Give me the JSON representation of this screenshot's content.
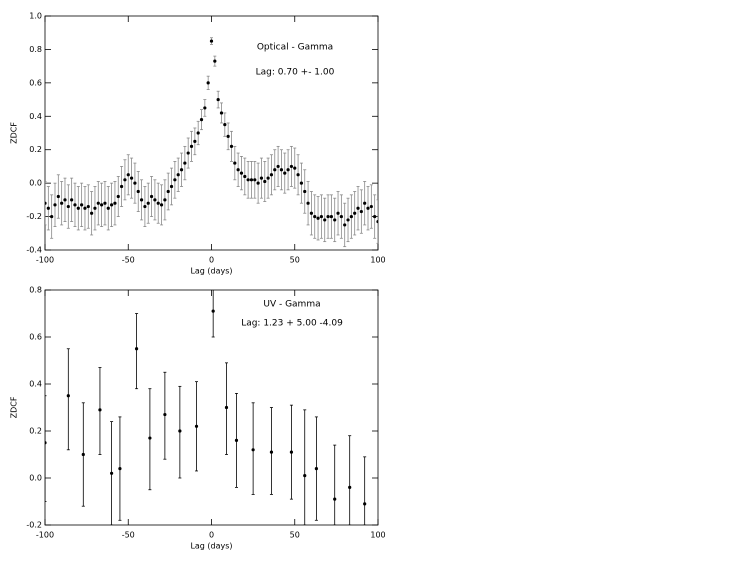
{
  "chart_data": [
    {
      "type": "scatter",
      "x_label": "Lag (days)",
      "y_label": "ZDCF",
      "annotations": [
        "Optical - Gamma",
        "Lag: 0.70 +- 1.00"
      ],
      "color": "#000000",
      "error_color": "#888888",
      "xlim": [
        -100,
        100
      ],
      "xticks": [
        -100,
        -50,
        0,
        50,
        100
      ],
      "ylim": [
        -0.4,
        1.0
      ],
      "yticks": [
        -0.4,
        -0.2,
        {
          "value": 0,
          "label": "0.0"
        },
        0.2,
        0.4,
        0.6,
        0.8,
        {
          "value": 1,
          "label": "1.0"
        }
      ],
      "x": [
        -100,
        -98,
        -96,
        -94,
        -92,
        -90,
        -88,
        -86,
        -84,
        -82,
        -80,
        -78,
        -76,
        -74,
        -72,
        -70,
        -68,
        -66,
        -64,
        -62,
        -60,
        -58,
        -56,
        -54,
        -52,
        -50,
        -48,
        -46,
        -44,
        -42,
        -40,
        -38,
        -36,
        -34,
        -32,
        -30,
        -28,
        -26,
        -24,
        -22,
        -20,
        -18,
        -16,
        -14,
        -12,
        -10,
        -8,
        -6,
        -4,
        -2,
        0,
        2,
        4,
        6,
        8,
        10,
        12,
        14,
        16,
        18,
        20,
        22,
        24,
        26,
        28,
        30,
        32,
        34,
        36,
        38,
        40,
        42,
        44,
        46,
        48,
        50,
        52,
        54,
        56,
        58,
        60,
        62,
        64,
        66,
        68,
        70,
        72,
        74,
        76,
        78,
        80,
        82,
        84,
        86,
        88,
        90,
        92,
        94,
        96,
        98,
        100
      ],
      "values": [
        -0.12,
        -0.15,
        -0.2,
        -0.13,
        -0.08,
        -0.12,
        -0.1,
        -0.14,
        -0.1,
        -0.13,
        -0.15,
        -0.13,
        -0.15,
        -0.14,
        -0.18,
        -0.15,
        -0.12,
        -0.13,
        -0.12,
        -0.15,
        -0.13,
        -0.12,
        -0.08,
        -0.02,
        0.02,
        0.05,
        0.03,
        0,
        -0.05,
        -0.1,
        -0.14,
        -0.12,
        -0.08,
        -0.1,
        -0.12,
        -0.13,
        -0.1,
        -0.05,
        -0.02,
        0.02,
        0.05,
        0.08,
        0.12,
        0.18,
        0.22,
        0.25,
        0.3,
        0.38,
        0.45,
        0.6,
        0.85,
        0.73,
        0.5,
        0.42,
        0.35,
        0.28,
        0.22,
        0.12,
        0.08,
        0.06,
        0.04,
        0.02,
        0.02,
        0.02,
        0,
        0.03,
        0.01,
        0.03,
        0.05,
        0.08,
        0.1,
        0.08,
        0.06,
        0.08,
        0.1,
        0.09,
        0.05,
        0,
        -0.05,
        -0.12,
        -0.18,
        -0.2,
        -0.21,
        -0.2,
        -0.22,
        -0.2,
        -0.2,
        -0.22,
        -0.18,
        -0.2,
        -0.25,
        -0.22,
        -0.2,
        -0.18,
        -0.15,
        -0.17,
        -0.12,
        -0.15,
        -0.14,
        -0.2,
        -0.23
      ],
      "errors": [
        0.13,
        0.13,
        0.13,
        0.13,
        0.13,
        0.13,
        0.13,
        0.13,
        0.13,
        0.13,
        0.13,
        0.13,
        0.13,
        0.13,
        0.13,
        0.13,
        0.13,
        0.13,
        0.13,
        0.13,
        0.13,
        0.13,
        0.12,
        0.12,
        0.12,
        0.12,
        0.12,
        0.12,
        0.12,
        0.12,
        0.12,
        0.12,
        0.12,
        0.12,
        0.12,
        0.12,
        0.12,
        0.11,
        0.11,
        0.11,
        0.1,
        0.1,
        0.1,
        0.09,
        0.09,
        0.08,
        0.07,
        0.06,
        0.05,
        0.04,
        0.02,
        0.03,
        0.05,
        0.06,
        0.07,
        0.08,
        0.09,
        0.1,
        0.1,
        0.1,
        0.11,
        0.11,
        0.11,
        0.11,
        0.12,
        0.12,
        0.12,
        0.12,
        0.12,
        0.12,
        0.12,
        0.12,
        0.12,
        0.12,
        0.12,
        0.12,
        0.12,
        0.12,
        0.13,
        0.13,
        0.13,
        0.13,
        0.13,
        0.13,
        0.13,
        0.13,
        0.13,
        0.13,
        0.13,
        0.13,
        0.13,
        0.13,
        0.13,
        0.13,
        0.13,
        0.13,
        0.13,
        0.13,
        0.13,
        0.13,
        0.13
      ]
    },
    {
      "type": "scatter",
      "x_label": "Lag (days)",
      "y_label": "ZDCF",
      "annotations": [
        "UV - Gamma",
        "Lag: 1.23 + 5.00 -4.09"
      ],
      "color": "#000000",
      "error_color": "#000000",
      "xlim": [
        -100,
        100
      ],
      "xticks": [
        -100,
        -50,
        0,
        50,
        100
      ],
      "ylim": [
        -0.2,
        0.8
      ],
      "yticks": [
        -0.2,
        {
          "value": 0,
          "label": "0.0"
        },
        0.2,
        0.4,
        0.6,
        0.8
      ],
      "x": [
        -100,
        -86,
        -77,
        -67,
        -60,
        -55,
        -45,
        -37,
        -28,
        -19,
        -9,
        1,
        9,
        15,
        25,
        36,
        48,
        56,
        63,
        74,
        83,
        92
      ],
      "values": [
        0.15,
        0.35,
        0.1,
        0.29,
        0.02,
        0.04,
        0.55,
        0.17,
        0.27,
        0.2,
        0.22,
        0.71,
        0.3,
        0.16,
        0.12,
        0.11,
        0.11,
        0.01,
        0.04,
        -0.09,
        -0.04,
        -0.11
      ],
      "err_minus": [
        0.25,
        0.23,
        0.22,
        0.19,
        0.22,
        0.22,
        0.17,
        0.22,
        0.19,
        0.2,
        0.19,
        0.11,
        0.2,
        0.2,
        0.19,
        0.18,
        0.2,
        0.21,
        0.22,
        0.11,
        0.16,
        0.09
      ],
      "err_plus": [
        0.2,
        0.2,
        0.22,
        0.18,
        0.22,
        0.22,
        0.15,
        0.21,
        0.18,
        0.19,
        0.19,
        0.12,
        0.19,
        0.2,
        0.2,
        0.19,
        0.2,
        0.28,
        0.22,
        0.23,
        0.22,
        0.2
      ]
    }
  ]
}
